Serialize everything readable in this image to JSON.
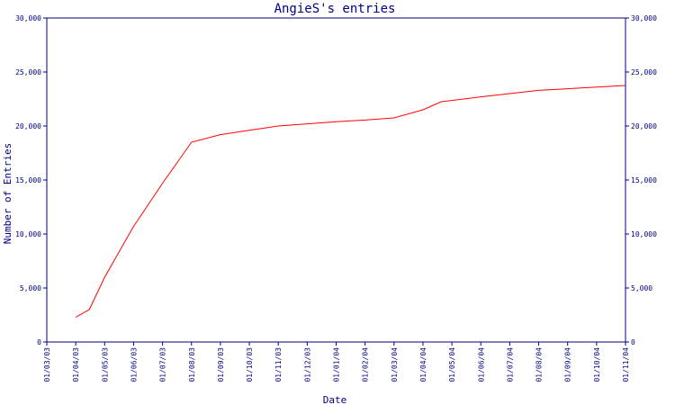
{
  "chart_data": {
    "type": "line",
    "title": "AngieS's entries",
    "xlabel": "Date",
    "ylabel": "Number of Entries",
    "ylim": [
      0,
      30000
    ],
    "y_ticks": [
      0,
      5000,
      10000,
      15000,
      20000,
      25000,
      30000
    ],
    "y_tick_labels": [
      "0",
      "5,000",
      "10,000",
      "15,000",
      "20,000",
      "25,000",
      "30,000"
    ],
    "x_ticks": [
      "01/03/03",
      "01/04/03",
      "01/05/03",
      "01/06/03",
      "01/07/03",
      "01/08/03",
      "01/09/03",
      "01/10/03",
      "01/11/03",
      "01/12/03",
      "01/01/04",
      "01/02/04",
      "01/03/04",
      "01/04/04",
      "01/05/04",
      "01/06/04",
      "01/07/04",
      "01/08/04",
      "01/09/04",
      "01/10/04",
      "01/11/04"
    ],
    "secondary_y_axis": true,
    "grid": false,
    "colors": {
      "axis": "#000080",
      "series": "#ff0000"
    },
    "series": [
      {
        "points": [
          {
            "x": "2003-04-01",
            "y": 2300
          },
          {
            "x": "2003-04-15",
            "y": 3000
          },
          {
            "x": "2003-05-01",
            "y": 6000
          },
          {
            "x": "2003-06-01",
            "y": 10700
          },
          {
            "x": "2003-07-01",
            "y": 14700
          },
          {
            "x": "2003-08-01",
            "y": 18500
          },
          {
            "x": "2003-09-01",
            "y": 19200
          },
          {
            "x": "2003-10-01",
            "y": 19600
          },
          {
            "x": "2003-11-01",
            "y": 20000
          },
          {
            "x": "2003-12-01",
            "y": 20200
          },
          {
            "x": "2004-01-01",
            "y": 20400
          },
          {
            "x": "2004-02-01",
            "y": 20550
          },
          {
            "x": "2004-03-01",
            "y": 20750
          },
          {
            "x": "2004-04-01",
            "y": 21500
          },
          {
            "x": "2004-04-20",
            "y": 22250
          },
          {
            "x": "2004-06-01",
            "y": 22700
          },
          {
            "x": "2004-07-01",
            "y": 23000
          },
          {
            "x": "2004-08-01",
            "y": 23300
          },
          {
            "x": "2004-09-01",
            "y": 23450
          },
          {
            "x": "2004-10-01",
            "y": 23600
          },
          {
            "x": "2004-11-01",
            "y": 23750
          }
        ]
      }
    ]
  }
}
